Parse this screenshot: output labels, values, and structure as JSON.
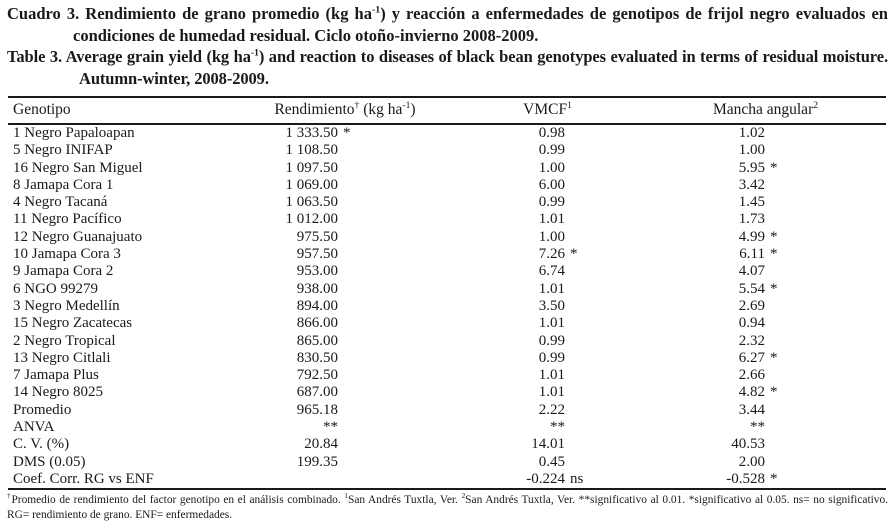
{
  "colors": {
    "text": "#1a1a1a",
    "background": "#ffffff"
  },
  "title_es": {
    "t1": "Cuadro 3. Rendimiento de grano promedio (kg ha",
    "s1": "-1",
    "t2": ") y reacción a enfermedades de genotipos de frijol negro evaluados en condiciones de humedad residual. Ciclo otoño-invierno 2008-2009."
  },
  "title_en": {
    "t1": "Table 3. Average grain yield (kg ha",
    "s1": "-1",
    "t2": ") and reaction to diseases of black bean genotypes evaluated in terms of residual moisture. Autumn-winter, 2008-2009."
  },
  "table": {
    "header": {
      "genotipo": "Genotipo",
      "rendimiento": {
        "t1": "Rendimiento",
        "s1": "†",
        "t2": " (kg ha",
        "s2": "-1",
        "t3": ")"
      },
      "vmcf": {
        "t1": "VMCF",
        "s1": "1"
      },
      "mancha": {
        "t1": "Mancha angular",
        "s1": "2"
      }
    },
    "rows": [
      {
        "genotype": "1 Negro Papaloapan",
        "yield": "1 333.50",
        "yield_mark": "*",
        "vmcf": "0.98",
        "vmcf_mark": "",
        "mancha": "1.02",
        "mancha_mark": ""
      },
      {
        "genotype": "5 Negro INIFAP",
        "yield": "1 108.50",
        "yield_mark": "",
        "vmcf": "0.99",
        "vmcf_mark": "",
        "mancha": "1.00",
        "mancha_mark": ""
      },
      {
        "genotype": "16 Negro San Miguel",
        "yield": "1 097.50",
        "yield_mark": "",
        "vmcf": "1.00",
        "vmcf_mark": "",
        "mancha": "5.95",
        "mancha_mark": "*"
      },
      {
        "genotype": "8 Jamapa Cora 1",
        "yield": "1 069.00",
        "yield_mark": "",
        "vmcf": "6.00",
        "vmcf_mark": "",
        "mancha": "3.42",
        "mancha_mark": ""
      },
      {
        "genotype": "4 Negro Tacaná",
        "yield": "1 063.50",
        "yield_mark": "",
        "vmcf": "0.99",
        "vmcf_mark": "",
        "mancha": "1.45",
        "mancha_mark": ""
      },
      {
        "genotype": "11 Negro Pacífico",
        "yield": "1 012.00",
        "yield_mark": "",
        "vmcf": "1.01",
        "vmcf_mark": "",
        "mancha": "1.73",
        "mancha_mark": ""
      },
      {
        "genotype": "12 Negro Guanajuato",
        "yield": "975.50",
        "yield_mark": "",
        "vmcf": "1.00",
        "vmcf_mark": "",
        "mancha": "4.99",
        "mancha_mark": "*"
      },
      {
        "genotype": "10 Jamapa Cora 3",
        "yield": "957.50",
        "yield_mark": "",
        "vmcf": "7.26",
        "vmcf_mark": "*",
        "mancha": "6.11",
        "mancha_mark": "*"
      },
      {
        "genotype": "9 Jamapa Cora 2",
        "yield": "953.00",
        "yield_mark": "",
        "vmcf": "6.74",
        "vmcf_mark": "",
        "mancha": "4.07",
        "mancha_mark": ""
      },
      {
        "genotype": "6 NGO 99279",
        "yield": "938.00",
        "yield_mark": "",
        "vmcf": "1.01",
        "vmcf_mark": "",
        "mancha": "5.54",
        "mancha_mark": "*"
      },
      {
        "genotype": "3 Negro Medellín",
        "yield": "894.00",
        "yield_mark": "",
        "vmcf": "3.50",
        "vmcf_mark": "",
        "mancha": "2.69",
        "mancha_mark": ""
      },
      {
        "genotype": "15 Negro Zacatecas",
        "yield": "866.00",
        "yield_mark": "",
        "vmcf": "1.01",
        "vmcf_mark": "",
        "mancha": "0.94",
        "mancha_mark": ""
      },
      {
        "genotype": "2 Negro Tropical",
        "yield": "865.00",
        "yield_mark": "",
        "vmcf": "0.99",
        "vmcf_mark": "",
        "mancha": "2.32",
        "mancha_mark": ""
      },
      {
        "genotype": "13 Negro Citlali",
        "yield": "830.50",
        "yield_mark": "",
        "vmcf": "0.99",
        "vmcf_mark": "",
        "mancha": "6.27",
        "mancha_mark": "*"
      },
      {
        "genotype": "7 Jamapa Plus",
        "yield": "792.50",
        "yield_mark": "",
        "vmcf": "1.01",
        "vmcf_mark": "",
        "mancha": "2.66",
        "mancha_mark": ""
      },
      {
        "genotype": "14 Negro 8025",
        "yield": "687.00",
        "yield_mark": "",
        "vmcf": "1.01",
        "vmcf_mark": "",
        "mancha": "4.82",
        "mancha_mark": "*"
      },
      {
        "genotype": "Promedio",
        "yield": "965.18",
        "yield_mark": "",
        "vmcf": "2.22",
        "vmcf_mark": "",
        "mancha": "3.44",
        "mancha_mark": ""
      },
      {
        "genotype": "ANVA",
        "yield": "**",
        "yield_mark": "",
        "vmcf": "**",
        "vmcf_mark": "",
        "mancha": "**",
        "mancha_mark": ""
      },
      {
        "genotype": "C. V. (%)",
        "yield": "20.84",
        "yield_mark": "",
        "vmcf": "14.01",
        "vmcf_mark": "",
        "mancha": "40.53",
        "mancha_mark": ""
      },
      {
        "genotype": "DMS (0.05)",
        "yield": "199.35",
        "yield_mark": "",
        "vmcf": "0.45",
        "vmcf_mark": "",
        "mancha": "2.00",
        "mancha_mark": ""
      },
      {
        "genotype": "Coef. Corr. RG vs ENF",
        "yield": "",
        "yield_mark": "",
        "vmcf": "-0.224",
        "vmcf_mark": "ns",
        "mancha": "-0.528",
        "mancha_mark": "*"
      }
    ]
  },
  "footnote": {
    "s1": "†",
    "t1": "Promedio de rendimiento del factor genotipo en el análisis combinado. ",
    "s2": "1",
    "t2": "San Andrés Tuxtla, Ver. ",
    "s3": "2",
    "t3": "San Andrés Tuxtla, Ver. **significativo al 0.01. *significativo al 0.05. ns= no significativo. RG= rendimiento de grano. ENF= enfermedades."
  }
}
